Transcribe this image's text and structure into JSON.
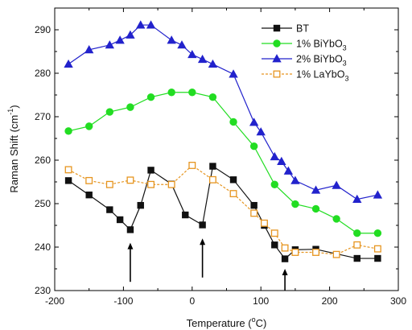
{
  "chart_data": {
    "type": "line",
    "xlabel": {
      "base": "Temperature (",
      "sup": "o",
      "tail": "C)"
    },
    "ylabel": {
      "base": "Raman Shift (cm",
      "sup": "-1",
      "tail": ")"
    },
    "xlim": [
      -200,
      300
    ],
    "ylim": [
      230,
      295
    ],
    "xticks": [
      -200,
      -100,
      0,
      100,
      200,
      300
    ],
    "yticks": [
      230,
      240,
      250,
      260,
      270,
      280,
      290
    ],
    "grid": false,
    "legend_position": "top-right",
    "series": [
      {
        "name": "BT",
        "legend": {
          "base": "BT",
          "sub": ""
        },
        "color": "#111111",
        "marker": "square",
        "filled": true,
        "dash": "",
        "x": [
          -180,
          -150,
          -120,
          -105,
          -90,
          -75,
          -60,
          -30,
          -10,
          15,
          30,
          60,
          90,
          105,
          120,
          135,
          150,
          180,
          240,
          270
        ],
        "y": [
          255.3,
          252,
          248.6,
          246.3,
          244,
          249.6,
          257.7,
          254.5,
          247.4,
          245.1,
          258.6,
          255.5,
          249.6,
          245,
          240.5,
          237.3,
          239.4,
          239.5,
          237.4,
          237.4
        ]
      },
      {
        "name": "1% BiYbO3",
        "legend": {
          "base": "1% BiYbO",
          "sub": "3"
        },
        "color": "#22dd22",
        "marker": "circle",
        "filled": true,
        "dash": "",
        "x": [
          -180,
          -150,
          -120,
          -90,
          -60,
          -30,
          0,
          30,
          60,
          90,
          120,
          150,
          180,
          210,
          240,
          270
        ],
        "y": [
          266.7,
          267.8,
          271.1,
          272.2,
          274.5,
          275.6,
          275.6,
          274.5,
          268.8,
          263.2,
          254.4,
          249.9,
          248.8,
          246.5,
          243.2,
          243.2
        ]
      },
      {
        "name": "2% BiYbO3",
        "legend": {
          "base": "2% BiYbO",
          "sub": "3"
        },
        "color": "#2222cc",
        "marker": "triangle",
        "filled": true,
        "dash": "",
        "x": [
          -180,
          -150,
          -120,
          -105,
          -90,
          -75,
          -60,
          -30,
          -15,
          0,
          15,
          30,
          60,
          90,
          100,
          120,
          130,
          140,
          150,
          180,
          210,
          240,
          270
        ],
        "y": [
          282.1,
          285.4,
          286.5,
          287.6,
          288.8,
          291.1,
          291.1,
          287.6,
          286.5,
          284.3,
          283.2,
          282.1,
          279.8,
          268.7,
          266.5,
          260.8,
          259.7,
          257.5,
          255.3,
          253.1,
          254.2,
          251,
          252
        ]
      },
      {
        "name": "1% LaYbO3",
        "legend": {
          "base": "1% LaYbO",
          "sub": "3"
        },
        "color": "#e69520",
        "marker": "square",
        "filled": false,
        "dash": "3,2",
        "x": [
          -180,
          -150,
          -120,
          -90,
          -60,
          -30,
          0,
          30,
          60,
          90,
          105,
          120,
          135,
          150,
          180,
          210,
          240,
          270
        ],
        "y": [
          257.8,
          255.3,
          254.4,
          255.4,
          254.4,
          254.4,
          258.8,
          255.5,
          252.3,
          247.8,
          245.5,
          243.2,
          239.8,
          238.8,
          238.8,
          238.3,
          240.5,
          239.6
        ]
      }
    ],
    "annotations": [
      {
        "type": "arrow",
        "direction": "up",
        "x": -90,
        "y_from": 232,
        "y_to": 241
      },
      {
        "type": "arrow",
        "direction": "up",
        "x": 15,
        "y_from": 233,
        "y_to": 242
      },
      {
        "type": "arrow",
        "direction": "up",
        "x": 135,
        "y_from": 230,
        "y_to": 235
      }
    ]
  }
}
